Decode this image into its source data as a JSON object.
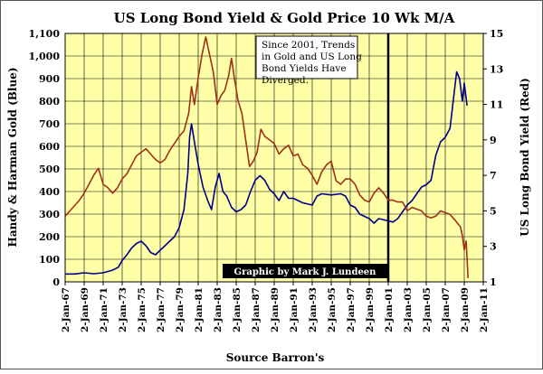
{
  "chart_data": {
    "type": "line",
    "title": "US Long Bond Yield & Gold Price 10 Wk M/A",
    "xlabel": "Source Barron's",
    "ylabel_left": "Handy & Harman Gold (Blue)",
    "ylabel_right": "US Long Bond Yield (Red)",
    "ylim_left": [
      0,
      1100
    ],
    "ylim_right": [
      1,
      15
    ],
    "xlim": [
      1967,
      2011
    ],
    "y_ticks_left": [
      "0",
      "100",
      "200",
      "300",
      "400",
      "500",
      "600",
      "700",
      "800",
      "900",
      "1,000",
      "1,100"
    ],
    "y_ticks_right": [
      "1",
      "3",
      "5",
      "7",
      "9",
      "11",
      "13",
      "15"
    ],
    "x_ticks": [
      "2-Jan-67",
      "2-Jan-69",
      "2-Jan-71",
      "2-Jan-73",
      "2-Jan-75",
      "2-Jan-77",
      "2-Jan-79",
      "2-Jan-81",
      "2-Jan-83",
      "2-Jan-85",
      "2-Jan-87",
      "2-Jan-89",
      "2-Jan-91",
      "2-Jan-93",
      "2-Jan-95",
      "2-Jan-97",
      "2-Jan-99",
      "2-Jan-01",
      "2-Jan-03",
      "2-Jan-05",
      "2-Jan-07",
      "2-Jan-09",
      "2-Jan-11"
    ],
    "grid": true,
    "background_color": "#ffffa8",
    "annotation": "Since 2001, Trends in Gold and US Long Bond Yields Have Diverged.",
    "marker_line_x": 2001,
    "credit": "Graphic by Mark J. Lundeen",
    "series": [
      {
        "axis": "left",
        "color": "#00008b",
        "x": [
          1967.0,
          1968.0,
          1969.0,
          1970.0,
          1971.0,
          1972.0,
          1972.6,
          1973.0,
          1973.5,
          1974.0,
          1974.5,
          1975.0,
          1975.5,
          1976.0,
          1976.5,
          1977.0,
          1977.5,
          1978.0,
          1978.5,
          1979.0,
          1979.5,
          1979.9,
          1980.1,
          1980.3,
          1980.6,
          1981.0,
          1981.5,
          1982.0,
          1982.4,
          1982.8,
          1983.2,
          1983.6,
          1984.0,
          1984.5,
          1985.0,
          1985.5,
          1986.0,
          1986.5,
          1987.0,
          1987.5,
          1988.0,
          1988.5,
          1989.0,
          1989.5,
          1990.0,
          1990.5,
          1991.0,
          1992.0,
          1993.0,
          1993.5,
          1994.0,
          1995.0,
          1996.0,
          1996.5,
          1997.0,
          1997.5,
          1998.0,
          1999.0,
          1999.5,
          2000.0,
          2001.0,
          2001.5,
          2002.0,
          2002.5,
          2003.0,
          2003.5,
          2004.0,
          2004.5,
          2005.0,
          2005.5,
          2006.0,
          2006.5,
          2007.0,
          2007.5,
          2008.0,
          2008.2,
          2008.5,
          2008.8,
          2009.0,
          2009.3
        ],
        "values": [
          35,
          35,
          40,
          36,
          40,
          52,
          65,
          95,
          120,
          150,
          170,
          180,
          160,
          130,
          120,
          140,
          160,
          180,
          200,
          240,
          320,
          480,
          640,
          700,
          620,
          520,
          420,
          360,
          320,
          420,
          480,
          400,
          380,
          330,
          310,
          320,
          340,
          400,
          450,
          470,
          450,
          410,
          390,
          360,
          400,
          370,
          370,
          350,
          340,
          380,
          390,
          385,
          390,
          380,
          340,
          330,
          300,
          280,
          260,
          280,
          270,
          265,
          280,
          310,
          340,
          360,
          390,
          420,
          430,
          450,
          560,
          620,
          640,
          680,
          860,
          930,
          900,
          800,
          880,
          780
        ]
      },
      {
        "axis": "right",
        "color": "#a0301a",
        "x": [
          1967.0,
          1967.5,
          1968.0,
          1968.5,
          1969.0,
          1969.5,
          1970.0,
          1970.5,
          1971.0,
          1971.5,
          1972.0,
          1972.5,
          1973.0,
          1973.5,
          1974.0,
          1974.5,
          1975.0,
          1975.5,
          1976.0,
          1976.5,
          1977.0,
          1977.5,
          1978.0,
          1978.5,
          1979.0,
          1979.5,
          1980.0,
          1980.3,
          1980.6,
          1981.0,
          1981.4,
          1981.8,
          1982.2,
          1982.6,
          1983.0,
          1983.4,
          1983.8,
          1984.2,
          1984.5,
          1984.8,
          1985.2,
          1985.6,
          1986.0,
          1986.4,
          1986.8,
          1987.2,
          1987.6,
          1988.0,
          1988.5,
          1989.0,
          1989.5,
          1990.0,
          1990.5,
          1991.0,
          1991.5,
          1992.0,
          1992.5,
          1993.0,
          1993.5,
          1994.0,
          1994.5,
          1995.0,
          1995.5,
          1996.0,
          1996.5,
          1997.0,
          1997.5,
          1998.0,
          1998.5,
          1999.0,
          1999.5,
          2000.0,
          2000.5,
          2001.0,
          2001.5,
          2002.0,
          2002.5,
          2003.0,
          2003.5,
          2004.0,
          2004.5,
          2005.0,
          2005.5,
          2006.0,
          2006.5,
          2007.0,
          2007.5,
          2008.0,
          2008.3,
          2008.6,
          2008.8,
          2009.0,
          2009.2,
          2009.4
        ],
        "values": [
          4.7,
          5.0,
          5.3,
          5.6,
          6.0,
          6.5,
          7.0,
          7.4,
          6.5,
          6.3,
          6.0,
          6.3,
          6.8,
          7.1,
          7.6,
          8.1,
          8.3,
          8.5,
          8.2,
          7.9,
          7.7,
          7.9,
          8.4,
          8.8,
          9.2,
          9.5,
          10.5,
          12.0,
          11.0,
          12.5,
          13.8,
          14.8,
          13.8,
          12.8,
          11.0,
          11.5,
          11.8,
          12.6,
          13.6,
          12.5,
          11.2,
          10.5,
          9.0,
          7.5,
          7.8,
          8.3,
          9.6,
          9.2,
          9.0,
          8.8,
          8.2,
          8.5,
          8.7,
          8.1,
          8.2,
          7.6,
          7.4,
          7.0,
          6.5,
          7.2,
          7.6,
          7.8,
          6.7,
          6.5,
          6.8,
          6.8,
          6.5,
          5.9,
          5.6,
          5.5,
          6.0,
          6.3,
          6.0,
          5.6,
          5.6,
          5.5,
          5.5,
          5.0,
          5.2,
          5.1,
          5.0,
          4.7,
          4.6,
          4.7,
          5.0,
          4.9,
          4.8,
          4.5,
          4.3,
          4.1,
          3.6,
          2.8,
          3.3,
          1.2
        ]
      }
    ]
  }
}
